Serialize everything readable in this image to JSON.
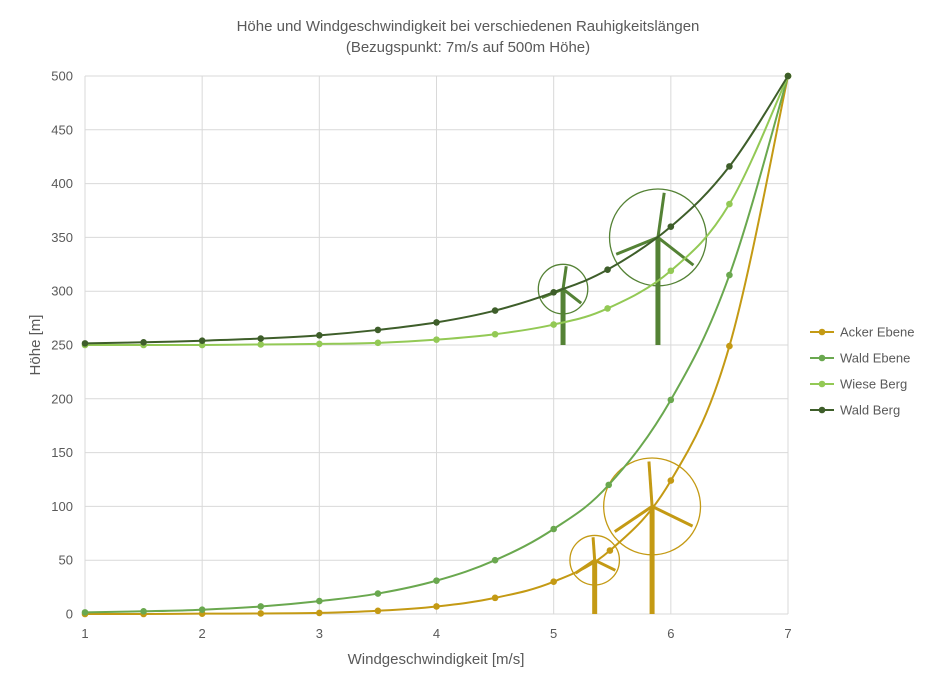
{
  "chart_data": {
    "type": "line",
    "title": "Höhe und Windgeschwindigkeit bei verschiedenen Rauhigkeitslängen",
    "subtitle": "(Bezugspunkt: 7m/s auf 500m Höhe)",
    "xlabel": "Windgeschwindigkeit [m/s]",
    "ylabel": "Höhe [m]",
    "xlim": [
      1,
      7
    ],
    "ylim": [
      0,
      500
    ],
    "x_ticks": [
      "1",
      "2",
      "3",
      "4",
      "5",
      "6",
      "7"
    ],
    "y_ticks": [
      "0",
      "50",
      "100",
      "150",
      "200",
      "250",
      "300",
      "350",
      "400",
      "450",
      "500"
    ],
    "grid": true,
    "legend_position": "right",
    "series": [
      {
        "name": "Acker Ebene",
        "color": "#c49a14",
        "points": [
          [
            1,
            0
          ],
          [
            1.5,
            0
          ],
          [
            2,
            0.3
          ],
          [
            2.5,
            0.5
          ],
          [
            3,
            1
          ],
          [
            3.5,
            3
          ],
          [
            4,
            7
          ],
          [
            4.5,
            15
          ],
          [
            5,
            30
          ],
          [
            5.48,
            59
          ],
          [
            6,
            124
          ],
          [
            6.5,
            249
          ],
          [
            7,
            500
          ]
        ]
      },
      {
        "name": "Wald Ebene",
        "color": "#6aa84f",
        "points": [
          [
            1,
            1.5
          ],
          [
            1.5,
            2.5
          ],
          [
            2,
            4
          ],
          [
            2.5,
            7
          ],
          [
            3,
            12
          ],
          [
            3.5,
            19
          ],
          [
            4,
            31
          ],
          [
            4.5,
            50
          ],
          [
            5,
            79
          ],
          [
            5.47,
            120
          ],
          [
            6,
            199
          ],
          [
            6.5,
            315
          ],
          [
            7,
            500
          ]
        ]
      },
      {
        "name": "Wiese Berg",
        "color": "#93c955",
        "points": [
          [
            1,
            250
          ],
          [
            1.5,
            250
          ],
          [
            2,
            250
          ],
          [
            2.5,
            250.5
          ],
          [
            3,
            251
          ],
          [
            3.5,
            252
          ],
          [
            4,
            255
          ],
          [
            4.5,
            260
          ],
          [
            5,
            269
          ],
          [
            5.46,
            284
          ],
          [
            6,
            319
          ],
          [
            6.5,
            381
          ],
          [
            7,
            500
          ]
        ]
      },
      {
        "name": "Wald Berg",
        "color": "#3e5e2a",
        "points": [
          [
            1,
            251.5
          ],
          [
            1.5,
            252.5
          ],
          [
            2,
            254
          ],
          [
            2.5,
            256
          ],
          [
            3,
            259
          ],
          [
            3.5,
            264
          ],
          [
            4,
            271
          ],
          [
            4.5,
            282
          ],
          [
            5,
            299
          ],
          [
            5.46,
            320
          ],
          [
            6,
            360
          ],
          [
            6.5,
            416
          ],
          [
            7,
            500
          ]
        ]
      }
    ],
    "turbines": [
      {
        "name": "turbine-small-bottom",
        "color": "#c49a14",
        "hub": [
          5.35,
          50
        ],
        "rotor_radius": 23
      },
      {
        "name": "turbine-large-bottom",
        "color": "#c49a14",
        "hub": [
          5.84,
          100
        ],
        "rotor_radius": 45
      },
      {
        "name": "turbine-small-top",
        "color": "#548235",
        "hub": [
          5.08,
          302
        ],
        "rotor_radius": 23
      },
      {
        "name": "turbine-large-top",
        "color": "#548235",
        "hub": [
          5.89,
          350
        ],
        "rotor_radius": 45
      }
    ]
  }
}
